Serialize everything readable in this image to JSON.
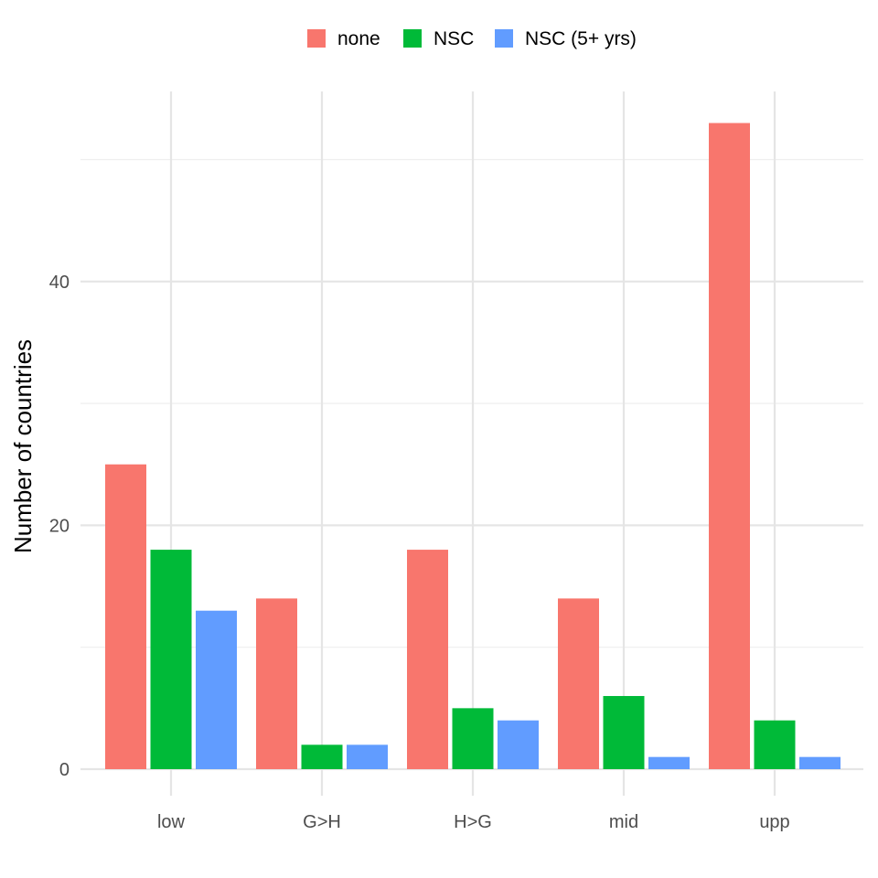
{
  "chart_data": {
    "type": "bar",
    "title": "",
    "xlabel": "",
    "ylabel": "Number of countries",
    "categories": [
      "low",
      "G>H",
      "H>G",
      "mid",
      "upp"
    ],
    "series": [
      {
        "name": "none",
        "color": "#F8766D",
        "values": [
          25,
          14,
          18,
          14,
          53
        ]
      },
      {
        "name": "NSC",
        "color": "#00BA38",
        "values": [
          18,
          2,
          5,
          6,
          4
        ]
      },
      {
        "name": "NSC (5+ yrs)",
        "color": "#619CFF",
        "values": [
          13,
          2,
          4,
          1,
          1
        ]
      }
    ],
    "ylim": [
      0,
      55
    ],
    "yticks": [
      0,
      20,
      40
    ],
    "minor_yticks": [
      10,
      30,
      50
    ],
    "grid": true,
    "legend_position": "top"
  }
}
